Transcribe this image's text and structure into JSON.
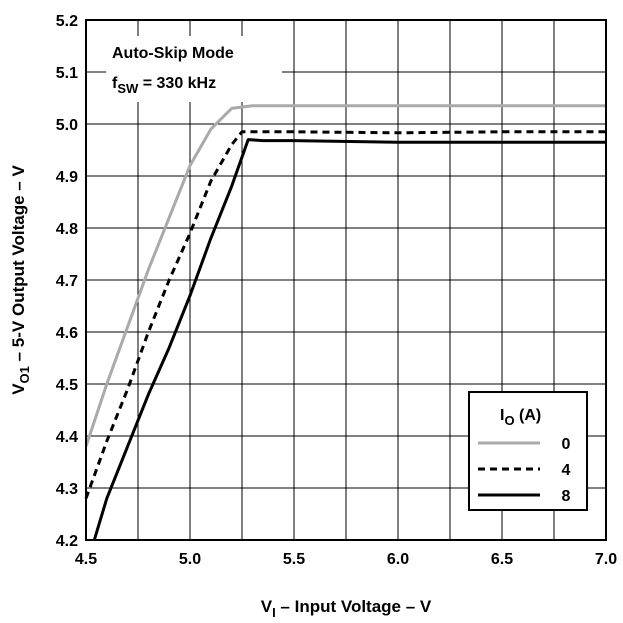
{
  "chart_data": {
    "type": "line",
    "xlabel": {
      "main": "V",
      "sub": "I",
      "rest": " – Input Voltage  –  V"
    },
    "ylabel": {
      "main": "V",
      "sub": "O1",
      "rest": " – 5-V Output Voltage  –  V"
    },
    "xlim": [
      4.5,
      7.0
    ],
    "ylim": [
      4.2,
      5.2
    ],
    "x_ticks": [
      "4.5",
      "5.0",
      "5.5",
      "6.0",
      "6.5",
      "7.0"
    ],
    "y_ticks": [
      "4.2",
      "4.3",
      "4.4",
      "4.5",
      "4.6",
      "4.7",
      "4.8",
      "4.9",
      "5.0",
      "5.1",
      "5.2"
    ],
    "grid": true,
    "annotation": {
      "line1": "Auto-Skip Mode",
      "line2_main": "f",
      "line2_sub": "SW",
      "line2_rest": " = 330 kHz"
    },
    "legend": {
      "title_main": "I",
      "title_sub": "O",
      "title_rest": " (A)",
      "position": "bottom-right"
    },
    "series": [
      {
        "name": "0",
        "color": "#aaaaaa",
        "style": "solid",
        "points": [
          [
            4.5,
            4.38
          ],
          [
            4.6,
            4.5
          ],
          [
            4.7,
            4.61
          ],
          [
            4.8,
            4.72
          ],
          [
            4.9,
            4.82
          ],
          [
            5.0,
            4.92
          ],
          [
            5.1,
            4.99
          ],
          [
            5.2,
            5.03
          ],
          [
            5.3,
            5.035
          ],
          [
            5.5,
            5.035
          ],
          [
            6.0,
            5.035
          ],
          [
            6.5,
            5.035
          ],
          [
            7.0,
            5.035
          ]
        ]
      },
      {
        "name": "4",
        "color": "#000000",
        "style": "dashed",
        "points": [
          [
            4.5,
            4.28
          ],
          [
            4.6,
            4.39
          ],
          [
            4.7,
            4.49
          ],
          [
            4.8,
            4.6
          ],
          [
            4.9,
            4.7
          ],
          [
            5.0,
            4.79
          ],
          [
            5.1,
            4.89
          ],
          [
            5.2,
            4.96
          ],
          [
            5.25,
            4.985
          ],
          [
            5.5,
            4.985
          ],
          [
            6.0,
            4.983
          ],
          [
            6.5,
            4.985
          ],
          [
            7.0,
            4.985
          ]
        ]
      },
      {
        "name": "8",
        "color": "#000000",
        "style": "solid",
        "points": [
          [
            4.54,
            4.2
          ],
          [
            4.6,
            4.28
          ],
          [
            4.7,
            4.38
          ],
          [
            4.8,
            4.48
          ],
          [
            4.9,
            4.57
          ],
          [
            5.0,
            4.67
          ],
          [
            5.1,
            4.78
          ],
          [
            5.2,
            4.88
          ],
          [
            5.28,
            4.97
          ],
          [
            5.35,
            4.968
          ],
          [
            5.5,
            4.968
          ],
          [
            6.0,
            4.965
          ],
          [
            6.5,
            4.965
          ],
          [
            7.0,
            4.965
          ]
        ]
      }
    ]
  }
}
